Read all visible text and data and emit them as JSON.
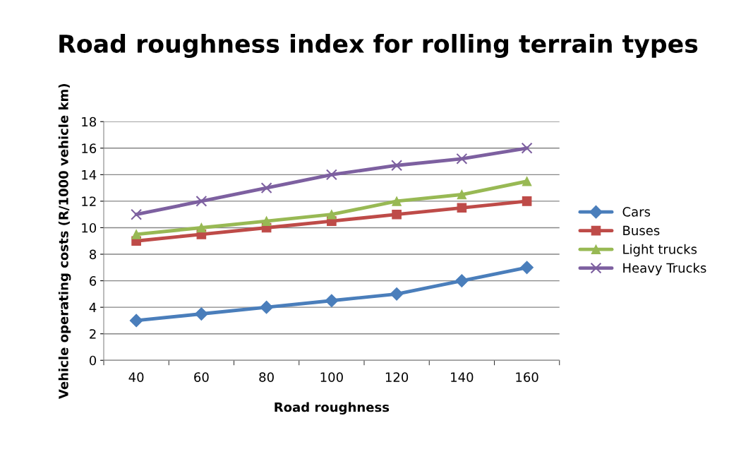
{
  "chart_data": {
    "type": "line",
    "title": "Road roughness index for rolling terrain types",
    "xlabel": "Road roughness",
    "ylabel": "Vehicle operating costs (R/1000 vehicle km)",
    "categories": [
      "40",
      "60",
      "80",
      "100",
      "120",
      "140",
      "160"
    ],
    "series": [
      {
        "name": "Cars",
        "color": "#4a7ebb",
        "marker": "diamond",
        "values": [
          3,
          3.5,
          4,
          4.5,
          5,
          6,
          7
        ]
      },
      {
        "name": "Buses",
        "color": "#be4b48",
        "marker": "square",
        "values": [
          9,
          9.5,
          10,
          10.5,
          11,
          11.5,
          12
        ]
      },
      {
        "name": "Light trucks",
        "color": "#98b954",
        "marker": "triangle",
        "values": [
          9.5,
          10,
          10.5,
          11,
          12,
          12.5,
          13.5
        ]
      },
      {
        "name": "Heavy Trucks",
        "color": "#7d60a0",
        "marker": "cross",
        "values": [
          11,
          12,
          13,
          14,
          14.7,
          15.2,
          16
        ]
      }
    ],
    "ylim": [
      0,
      18
    ],
    "yticks": [
      0,
      2,
      4,
      6,
      8,
      10,
      12,
      14,
      16,
      18
    ],
    "grid": "y",
    "legend": "right",
    "line_style": "solid"
  }
}
